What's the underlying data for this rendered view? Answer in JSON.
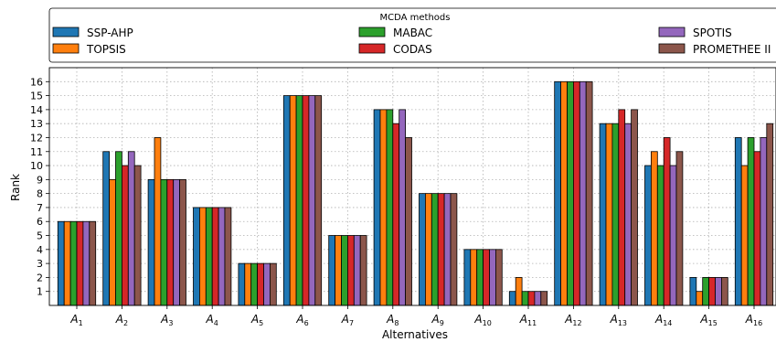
{
  "chart_data": {
    "type": "bar",
    "xlabel": "Alternatives",
    "ylabel": "Rank",
    "ylim": [
      0,
      17
    ],
    "yticks": [
      1,
      2,
      3,
      4,
      5,
      6,
      7,
      8,
      9,
      10,
      11,
      12,
      13,
      14,
      15,
      16
    ],
    "grid": true,
    "legend": {
      "title": "MCDA methods",
      "placement": "top, outside plot area, 3 columns"
    },
    "categories": [
      {
        "base": "A",
        "sub": "1"
      },
      {
        "base": "A",
        "sub": "2"
      },
      {
        "base": "A",
        "sub": "3"
      },
      {
        "base": "A",
        "sub": "4"
      },
      {
        "base": "A",
        "sub": "5"
      },
      {
        "base": "A",
        "sub": "6"
      },
      {
        "base": "A",
        "sub": "7"
      },
      {
        "base": "A",
        "sub": "8"
      },
      {
        "base": "A",
        "sub": "9"
      },
      {
        "base": "A",
        "sub": "10"
      },
      {
        "base": "A",
        "sub": "11"
      },
      {
        "base": "A",
        "sub": "12"
      },
      {
        "base": "A",
        "sub": "13"
      },
      {
        "base": "A",
        "sub": "14"
      },
      {
        "base": "A",
        "sub": "15"
      },
      {
        "base": "A",
        "sub": "16"
      }
    ],
    "series": [
      {
        "name": "SSP-AHP",
        "color": "#1f77b4",
        "values": [
          6,
          11,
          9,
          7,
          3,
          15,
          5,
          14,
          8,
          4,
          1,
          16,
          13,
          10,
          2,
          12
        ]
      },
      {
        "name": "TOPSIS",
        "color": "#ff7f0e",
        "values": [
          6,
          9,
          12,
          7,
          3,
          15,
          5,
          14,
          8,
          4,
          2,
          16,
          13,
          11,
          1,
          10
        ]
      },
      {
        "name": "MABAC",
        "color": "#2ca02c",
        "values": [
          6,
          11,
          9,
          7,
          3,
          15,
          5,
          14,
          8,
          4,
          1,
          16,
          13,
          10,
          2,
          12
        ]
      },
      {
        "name": "CODAS",
        "color": "#d62728",
        "values": [
          6,
          10,
          9,
          7,
          3,
          15,
          5,
          13,
          8,
          4,
          1,
          16,
          14,
          12,
          2,
          11
        ]
      },
      {
        "name": "SPOTIS",
        "color": "#9467bd",
        "values": [
          6,
          11,
          9,
          7,
          3,
          15,
          5,
          14,
          8,
          4,
          1,
          16,
          13,
          10,
          2,
          12
        ]
      },
      {
        "name": "PROMETHEE II",
        "color": "#8c564b",
        "values": [
          6,
          10,
          9,
          7,
          3,
          15,
          5,
          12,
          8,
          4,
          1,
          16,
          14,
          11,
          2,
          13
        ]
      }
    ]
  }
}
